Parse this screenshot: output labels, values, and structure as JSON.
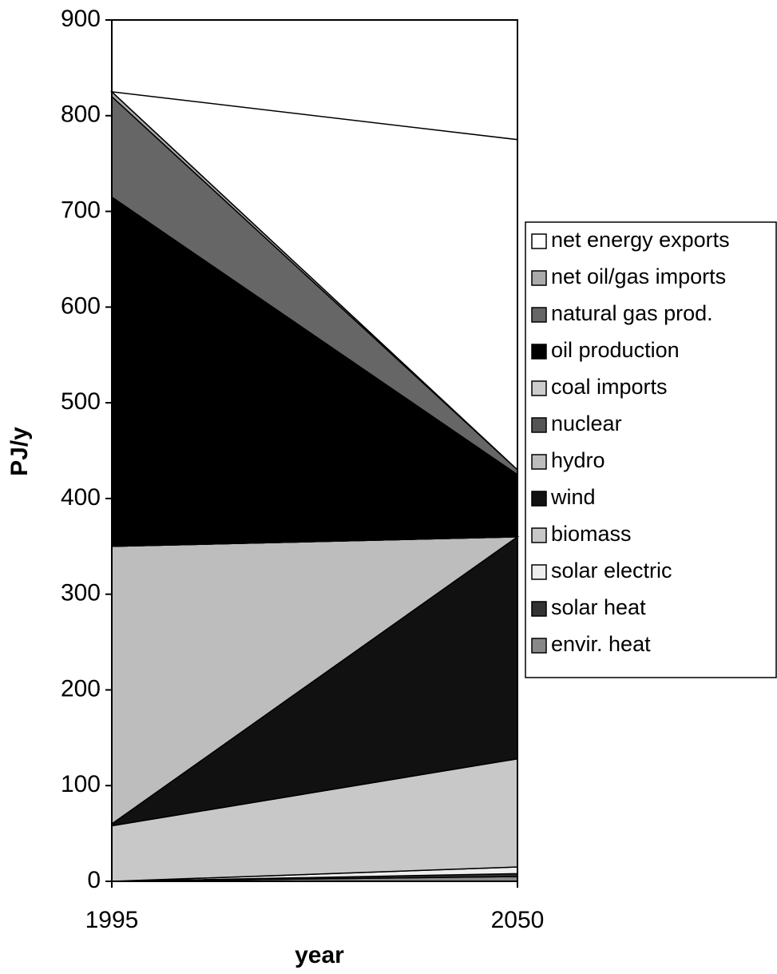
{
  "chart_data": {
    "type": "stacked_area",
    "xlabel": "year",
    "ylabel": "PJ/y",
    "x": [
      1995,
      2050
    ],
    "xlim": [
      1995,
      2050
    ],
    "xticks": [
      1995,
      2050
    ],
    "ylim": [
      0,
      900
    ],
    "yticks": [
      0,
      100,
      200,
      300,
      400,
      500,
      600,
      700,
      800,
      900
    ],
    "legend": "right",
    "series": [
      {
        "name": "envir. heat",
        "color": "#888888",
        "values": [
          0,
          5
        ]
      },
      {
        "name": "solar heat",
        "color": "#333333",
        "values": [
          0,
          3
        ]
      },
      {
        "name": "solar electric",
        "color": "#eeeeee",
        "values": [
          0,
          7
        ]
      },
      {
        "name": "biomass",
        "color": "#c8c8c8",
        "values": [
          58,
          113
        ]
      },
      {
        "name": "wind",
        "color": "#111111",
        "values": [
          2,
          232
        ]
      },
      {
        "name": "hydro",
        "color": "#bdbdbd",
        "values": [
          290,
          0
        ]
      },
      {
        "name": "nuclear",
        "color": "#555555",
        "values": [
          0,
          0
        ]
      },
      {
        "name": "coal imports",
        "color": "#cccccc",
        "values": [
          0,
          0
        ]
      },
      {
        "name": "oil production",
        "color": "#000000",
        "values": [
          365,
          65
        ]
      },
      {
        "name": "natural gas prod.",
        "color": "#666666",
        "values": [
          105,
          5
        ]
      },
      {
        "name": "net oil/gas imports",
        "color": "#aaaaaa",
        "values": [
          5,
          0
        ]
      },
      {
        "name": "net energy exports",
        "color": "#ffffff",
        "values": [
          0,
          345
        ]
      }
    ]
  }
}
